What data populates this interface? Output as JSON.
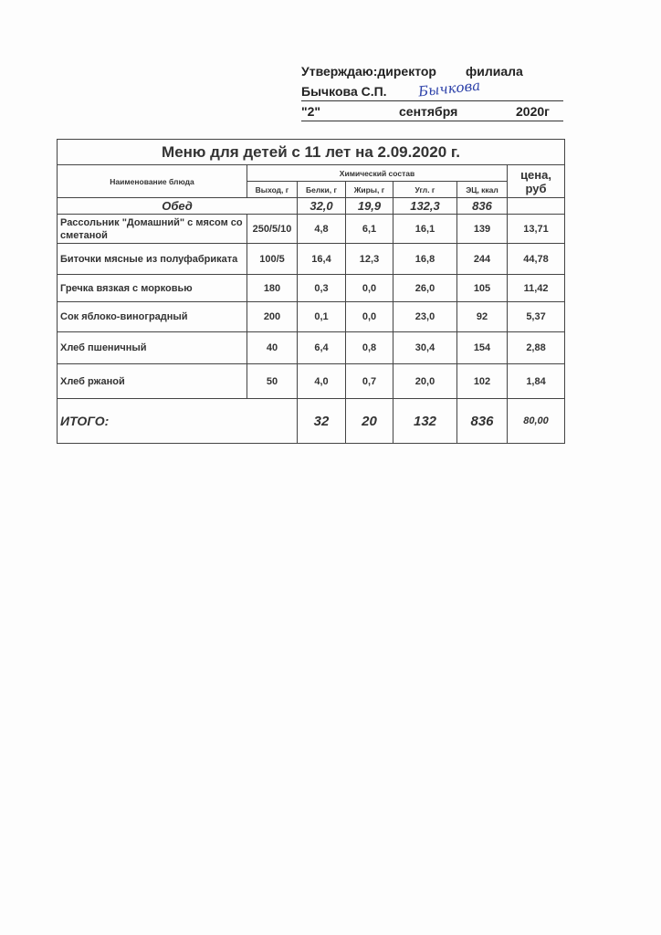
{
  "approval": {
    "line1_left": "Утверждаю:директор",
    "line1_right": "филиала",
    "name": "Бычкова С.П.",
    "signature": "Бычкова",
    "day": "\"2\"",
    "month": "сентября",
    "year": "2020г"
  },
  "table": {
    "title": "Меню для детей с 11 лет на 2.09.2020 г.",
    "headers": {
      "dish": "Наименование блюда",
      "chem": "Химический состав",
      "price": "цена, руб",
      "yield": "Выход, г",
      "protein": "Белки, г",
      "fat": "Жиры, г",
      "carb": "Угл. г",
      "energy": "ЭЦ, ккал"
    },
    "meal": {
      "label": "Обед",
      "protein": "32,0",
      "fat": "19,9",
      "carb": "132,3",
      "energy": "836"
    },
    "rows": [
      {
        "name": "Рассольник \"Домашний\" с мясом со сметаной",
        "yield": "250/5/10",
        "protein": "4,8",
        "fat": "6,1",
        "carb": "16,1",
        "energy": "139",
        "price": "13,71"
      },
      {
        "name": "Биточки мясные из полуфабриката",
        "yield": "100/5",
        "protein": "16,4",
        "fat": "12,3",
        "carb": "16,8",
        "energy": "244",
        "price": "44,78"
      },
      {
        "name": "Гречка вязкая с морковью",
        "yield": "180",
        "protein": "0,3",
        "fat": "0,0",
        "carb": "26,0",
        "energy": "105",
        "price": "11,42"
      },
      {
        "name": "Сок яблоко-виноградный",
        "yield": "200",
        "protein": "0,1",
        "fat": "0,0",
        "carb": "23,0",
        "energy": "92",
        "price": "5,37"
      },
      {
        "name": "Хлеб пшеничный",
        "yield": "40",
        "protein": "6,4",
        "fat": "0,8",
        "carb": "30,4",
        "energy": "154",
        "price": "2,88"
      },
      {
        "name": "Хлеб ржаной",
        "yield": "50",
        "protein": "4,0",
        "fat": "0,7",
        "carb": "20,0",
        "energy": "102",
        "price": "1,84"
      }
    ],
    "total": {
      "label": "ИТОГО:",
      "protein": "32",
      "fat": "20",
      "carb": "132",
      "energy": "836",
      "price": "80,00"
    }
  }
}
